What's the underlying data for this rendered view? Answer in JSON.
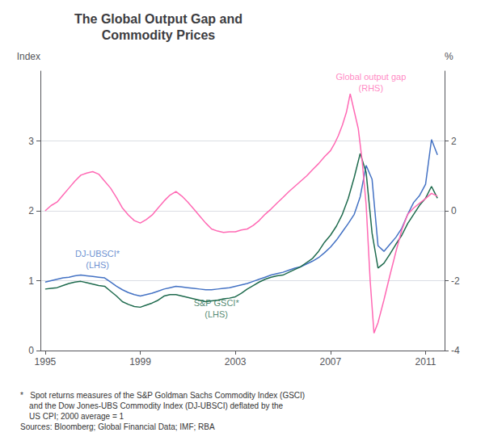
{
  "chart_data": {
    "type": "line",
    "title": "The Global Output Gap and\nCommodity Prices",
    "ylabel": "Index",
    "y2label": "%",
    "footnote": "*   Spot returns measures of the S&P Goldman Sachs Commodity Index (GSCI)\n    and the Dow Jones-UBS Commodity Index (DJ-UBSCI) deflated by the\n    US CPI; 2000 average = 1\nSources: Bloomberg; Global Financial Data; IMF; RBA",
    "xlim": [
      1994.8,
      2011.8
    ],
    "xticks": [
      1995,
      1999,
      2003,
      2007,
      2011
    ],
    "ylim": [
      0,
      4.0
    ],
    "yticks": [
      0,
      1,
      2,
      3
    ],
    "y2lim": [
      -4,
      4.0
    ],
    "y2ticks": [
      -4,
      -2,
      0,
      2
    ],
    "grid": true,
    "annotations": [
      {
        "text": "DJ-UBSCI*\n(LHS)",
        "x": 1997.2,
        "y": 1.12,
        "color": "#4472C4"
      },
      {
        "text": "S&P GSCI*\n(LHS)",
        "x": 2002.2,
        "y": 0.42,
        "color": "#1F6B4E"
      },
      {
        "text": "Global output gap\n(RHS)",
        "x": 2008.7,
        "y": 3.65,
        "color": "#FF69B4"
      }
    ],
    "series": [
      {
        "color": "#4472C4",
        "axis": "y",
        "x": [
          1995.0,
          1995.25,
          1995.5,
          1995.75,
          1996.0,
          1996.25,
          1996.5,
          1996.75,
          1997.0,
          1997.25,
          1997.5,
          1997.75,
          1998.0,
          1998.25,
          1998.5,
          1998.75,
          1999.0,
          1999.25,
          1999.5,
          1999.75,
          2000.0,
          2000.25,
          2000.5,
          2000.75,
          2001.0,
          2001.25,
          2001.5,
          2001.75,
          2002.0,
          2002.25,
          2002.5,
          2002.75,
          2003.0,
          2003.25,
          2003.5,
          2003.75,
          2004.0,
          2004.25,
          2004.5,
          2004.75,
          2005.0,
          2005.25,
          2005.5,
          2005.75,
          2006.0,
          2006.25,
          2006.5,
          2006.75,
          2007.0,
          2007.25,
          2007.5,
          2007.75,
          2008.0,
          2008.25,
          2008.5,
          2008.75,
          2009.0,
          2009.25,
          2009.5,
          2009.75,
          2010.0,
          2010.25,
          2010.5,
          2010.75,
          2011.0,
          2011.25,
          2011.5
        ],
        "values": [
          0.98,
          1.0,
          1.02,
          1.04,
          1.05,
          1.07,
          1.08,
          1.07,
          1.06,
          1.05,
          1.04,
          0.98,
          0.92,
          0.87,
          0.83,
          0.8,
          0.78,
          0.8,
          0.82,
          0.85,
          0.88,
          0.9,
          0.92,
          0.91,
          0.9,
          0.89,
          0.88,
          0.87,
          0.87,
          0.88,
          0.89,
          0.9,
          0.92,
          0.94,
          0.96,
          0.99,
          1.02,
          1.05,
          1.08,
          1.1,
          1.12,
          1.15,
          1.18,
          1.2,
          1.24,
          1.28,
          1.33,
          1.4,
          1.48,
          1.58,
          1.7,
          1.82,
          1.95,
          2.2,
          2.65,
          2.45,
          1.5,
          1.42,
          1.52,
          1.62,
          1.75,
          1.95,
          2.12,
          2.22,
          2.38,
          3.02,
          2.8
        ]
      },
      {
        "color": "#1F6B4E",
        "axis": "y",
        "x": [
          1995.0,
          1995.25,
          1995.5,
          1995.75,
          1996.0,
          1996.25,
          1996.5,
          1996.75,
          1997.0,
          1997.25,
          1997.5,
          1997.75,
          1998.0,
          1998.25,
          1998.5,
          1998.75,
          1999.0,
          1999.25,
          1999.5,
          1999.75,
          2000.0,
          2000.25,
          2000.5,
          2000.75,
          2001.0,
          2001.25,
          2001.5,
          2001.75,
          2002.0,
          2002.25,
          2002.5,
          2002.75,
          2003.0,
          2003.25,
          2003.5,
          2003.75,
          2004.0,
          2004.25,
          2004.5,
          2004.75,
          2005.0,
          2005.25,
          2005.5,
          2005.75,
          2006.0,
          2006.25,
          2006.5,
          2006.75,
          2007.0,
          2007.25,
          2007.5,
          2007.75,
          2008.0,
          2008.25,
          2008.5,
          2008.75,
          2009.0,
          2009.25,
          2009.5,
          2009.75,
          2010.0,
          2010.25,
          2010.5,
          2010.75,
          2011.0,
          2011.25,
          2011.5
        ],
        "values": [
          0.88,
          0.89,
          0.9,
          0.93,
          0.96,
          0.98,
          0.99,
          0.97,
          0.95,
          0.93,
          0.92,
          0.85,
          0.78,
          0.7,
          0.66,
          0.63,
          0.62,
          0.65,
          0.68,
          0.72,
          0.78,
          0.8,
          0.8,
          0.78,
          0.76,
          0.74,
          0.72,
          0.7,
          0.71,
          0.72,
          0.74,
          0.75,
          0.77,
          0.82,
          0.88,
          0.93,
          0.98,
          1.02,
          1.05,
          1.07,
          1.08,
          1.12,
          1.16,
          1.2,
          1.26,
          1.32,
          1.42,
          1.55,
          1.65,
          1.78,
          1.95,
          2.18,
          2.48,
          2.82,
          2.55,
          1.68,
          1.18,
          1.25,
          1.38,
          1.52,
          1.65,
          1.82,
          1.95,
          2.08,
          2.18,
          2.35,
          2.18
        ]
      },
      {
        "color": "#FF69B4",
        "axis": "y2",
        "x": [
          1995.0,
          1995.25,
          1995.5,
          1995.75,
          1996.0,
          1996.25,
          1996.5,
          1996.75,
          1997.0,
          1997.25,
          1997.5,
          1997.75,
          1998.0,
          1998.25,
          1998.5,
          1998.75,
          1999.0,
          1999.25,
          1999.5,
          1999.75,
          2000.0,
          2000.25,
          2000.5,
          2000.75,
          2001.0,
          2001.25,
          2001.5,
          2001.75,
          2002.0,
          2002.25,
          2002.5,
          2002.75,
          2003.0,
          2003.25,
          2003.5,
          2003.75,
          2004.0,
          2004.25,
          2004.5,
          2004.75,
          2005.0,
          2005.25,
          2005.5,
          2005.75,
          2006.0,
          2006.25,
          2006.5,
          2006.75,
          2007.0,
          2007.17,
          2007.33,
          2007.5,
          2007.67,
          2007.83,
          2008.0,
          2008.17,
          2008.33,
          2008.5,
          2008.67,
          2008.83,
          2009.0,
          2009.25,
          2009.5,
          2009.75,
          2010.0,
          2010.25,
          2010.5,
          2010.75,
          2011.0,
          2011.25,
          2011.5
        ],
        "values": [
          0.0,
          0.15,
          0.25,
          0.45,
          0.65,
          0.85,
          1.02,
          1.08,
          1.12,
          1.05,
          0.85,
          0.65,
          0.38,
          0.08,
          -0.12,
          -0.28,
          -0.35,
          -0.25,
          -0.12,
          0.08,
          0.28,
          0.45,
          0.55,
          0.42,
          0.25,
          0.05,
          -0.15,
          -0.35,
          -0.52,
          -0.58,
          -0.62,
          -0.6,
          -0.6,
          -0.55,
          -0.52,
          -0.42,
          -0.28,
          -0.1,
          0.05,
          0.22,
          0.38,
          0.55,
          0.7,
          0.85,
          1.0,
          1.18,
          1.35,
          1.55,
          1.72,
          1.92,
          2.15,
          2.45,
          2.82,
          3.35,
          2.85,
          2.35,
          1.45,
          0.18,
          -2.0,
          -3.5,
          -3.2,
          -2.55,
          -1.85,
          -1.18,
          -0.55,
          -0.1,
          0.08,
          0.22,
          0.35,
          0.5,
          0.42
        ]
      }
    ]
  }
}
